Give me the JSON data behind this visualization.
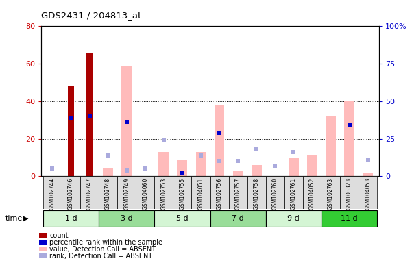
{
  "title": "GDS2431 / 204813_at",
  "samples": [
    "GSM102744",
    "GSM102746",
    "GSM102747",
    "GSM102748",
    "GSM102749",
    "GSM104060",
    "GSM102753",
    "GSM102755",
    "GSM104051",
    "GSM102756",
    "GSM102757",
    "GSM102758",
    "GSM102760",
    "GSM102761",
    "GSM104052",
    "GSM102763",
    "GSM103323",
    "GSM104053"
  ],
  "time_groups": [
    {
      "label": "1 d",
      "indices": [
        0,
        1,
        2
      ],
      "color": "#d4f5d4"
    },
    {
      "label": "3 d",
      "indices": [
        3,
        4,
        5
      ],
      "color": "#99dd99"
    },
    {
      "label": "5 d",
      "indices": [
        6,
        7,
        8
      ],
      "color": "#d4f5d4"
    },
    {
      "label": "7 d",
      "indices": [
        9,
        10,
        11
      ],
      "color": "#99dd99"
    },
    {
      "label": "9 d",
      "indices": [
        12,
        13,
        14
      ],
      "color": "#d4f5d4"
    },
    {
      "label": "11 d",
      "indices": [
        15,
        16,
        17
      ],
      "color": "#33cc33"
    }
  ],
  "count_values": [
    0,
    48,
    66,
    0,
    0,
    0,
    0,
    0,
    0,
    0,
    0,
    0,
    0,
    0,
    0,
    0,
    0,
    0
  ],
  "count_color": "#aa0000",
  "percentile_rank_values": [
    0,
    39,
    40,
    0,
    36,
    0,
    0,
    2,
    0,
    29,
    0,
    0,
    0,
    0,
    0,
    0,
    34,
    0
  ],
  "percentile_rank_color": "#0000cc",
  "absent_value_values": [
    0,
    0,
    0,
    4,
    59,
    0,
    13,
    9,
    13,
    38,
    3,
    6,
    0,
    10,
    11,
    32,
    40,
    2
  ],
  "absent_value_color": "#ffbbbb",
  "absent_rank_values": [
    5,
    0,
    0,
    14,
    4,
    5,
    24,
    0,
    14,
    10,
    10,
    18,
    7,
    16,
    0,
    0,
    0,
    11
  ],
  "absent_rank_color": "#aaaadd",
  "ylim_left": [
    0,
    80
  ],
  "ylim_right": [
    0,
    100
  ],
  "yticks_left": [
    0,
    20,
    40,
    60,
    80
  ],
  "yticks_right": [
    0,
    25,
    50,
    75,
    100
  ],
  "ytick_labels_right": [
    "0",
    "25",
    "50",
    "75",
    "100%"
  ],
  "bar_width": 0.55,
  "marker_size": 5,
  "legend_items": [
    {
      "label": "count",
      "color": "#aa0000"
    },
    {
      "label": "percentile rank within the sample",
      "color": "#0000cc"
    },
    {
      "label": "value, Detection Call = ABSENT",
      "color": "#ffbbbb"
    },
    {
      "label": "rank, Detection Call = ABSENT",
      "color": "#aaaadd"
    }
  ],
  "xlabel": "time",
  "background_color": "#ffffff",
  "tick_color_left": "#cc0000",
  "tick_color_right": "#0000cc",
  "sample_bg_color": "#dddddd",
  "grid_colors_cycle": [
    "#d4f5d4",
    "#99dd99",
    "#d4f5d4",
    "#99dd99",
    "#d4f5d4",
    "#33cc33"
  ]
}
